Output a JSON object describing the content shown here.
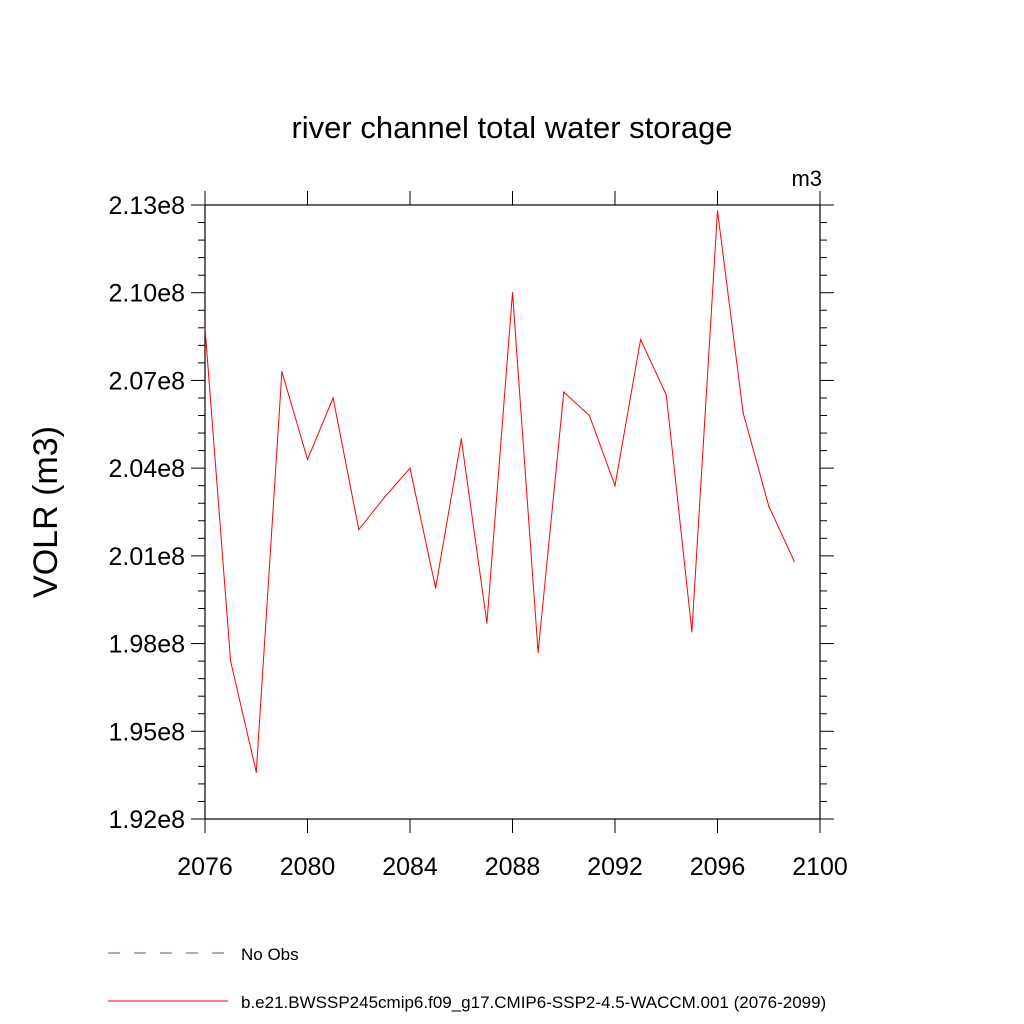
{
  "chart_data": {
    "type": "line",
    "title": "river channel total water storage",
    "units_label": "m3",
    "ylabel": "VOLR  (m3)",
    "xlabel": "",
    "xlim": [
      2076,
      2100
    ],
    "ylim": [
      192000000,
      213000000
    ],
    "x_ticks": [
      2076,
      2080,
      2084,
      2088,
      2092,
      2096,
      2100
    ],
    "x_tick_labels": [
      "2076",
      "2080",
      "2084",
      "2088",
      "2092",
      "2096",
      "2100"
    ],
    "y_ticks": [
      192000000,
      195000000,
      198000000,
      201000000,
      204000000,
      207000000,
      210000000,
      213000000
    ],
    "y_tick_labels": [
      "1.92e8",
      "1.95e8",
      "1.98e8",
      "2.01e8",
      "2.04e8",
      "2.07e8",
      "2.10e8",
      "2.13e8"
    ],
    "x": [
      2076,
      2077,
      2078,
      2079,
      2080,
      2081,
      2082,
      2083,
      2084,
      2085,
      2086,
      2087,
      2088,
      2089,
      2090,
      2091,
      2092,
      2093,
      2094,
      2095,
      2096,
      2097,
      2098,
      2099
    ],
    "series": [
      {
        "name": "b.e21.BWSSP245cmip6.f09_g17.CMIP6-SSP2-4.5-WACCM.001 (2076-2099)",
        "color": "#ff0000",
        "style": "solid",
        "values": [
          208800000,
          197400000,
          193600000,
          207300000,
          204300000,
          206400000,
          201900000,
          203000000,
          204000000,
          199900000,
          205000000,
          198700000,
          210000000,
          197700000,
          206600000,
          205800000,
          203400000,
          208400000,
          206500000,
          198400000,
          212800000,
          205900000,
          202700000,
          200800000
        ]
      }
    ],
    "legend": [
      {
        "label": "No Obs",
        "color": "#5b4fa0",
        "style": "dashed"
      },
      {
        "label": "b.e21.BWSSP245cmip6.f09_g17.CMIP6-SSP2-4.5-WACCM.001 (2076-2099)",
        "color": "#ff0000",
        "style": "solid"
      }
    ],
    "legend_position": "bottom",
    "grid": false
  }
}
